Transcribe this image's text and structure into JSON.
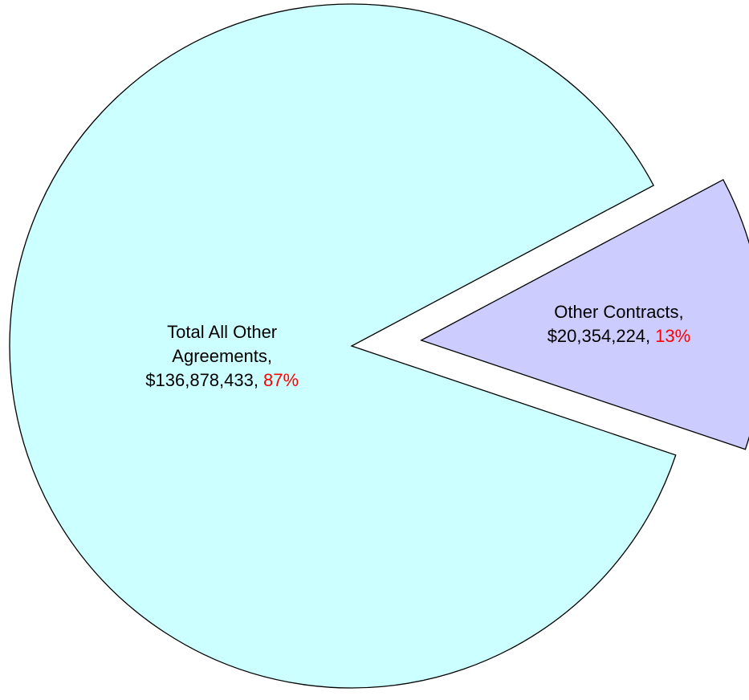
{
  "chart_data": {
    "type": "pie",
    "categories": [
      "Total All Other Agreements,",
      "Other Contracts,"
    ],
    "values": [
      136878433,
      20354224
    ],
    "value_labels": [
      "$136,878,433,",
      "$20,354,224,"
    ],
    "percent_labels": [
      "87%",
      "13%"
    ],
    "colors": [
      "#ccffff",
      "#ccccff"
    ],
    "percent_color": "#ff0000",
    "exploded": [
      false,
      true
    ]
  }
}
